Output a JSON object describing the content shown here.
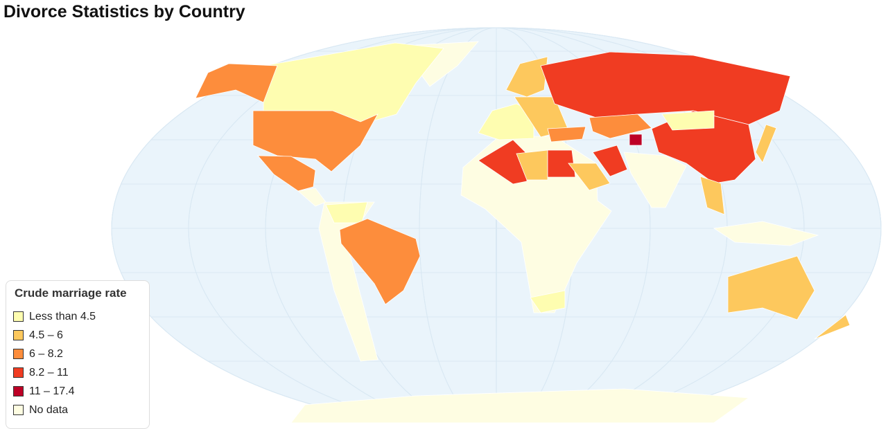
{
  "title": "Divorce Statistics by Country",
  "legend": {
    "title": "Crude marriage rate",
    "items": [
      {
        "label": "Less than 4.5",
        "color": "#fefdb0"
      },
      {
        "label": "4.5 – 6",
        "color": "#fdc85d"
      },
      {
        "label": "6 – 8.2",
        "color": "#fd8d3c"
      },
      {
        "label": "8.2 – 11",
        "color": "#f03c22"
      },
      {
        "label": "11 – 17.4",
        "color": "#bd0026"
      },
      {
        "label": "No data",
        "color": "#fefde2"
      }
    ]
  }
}
